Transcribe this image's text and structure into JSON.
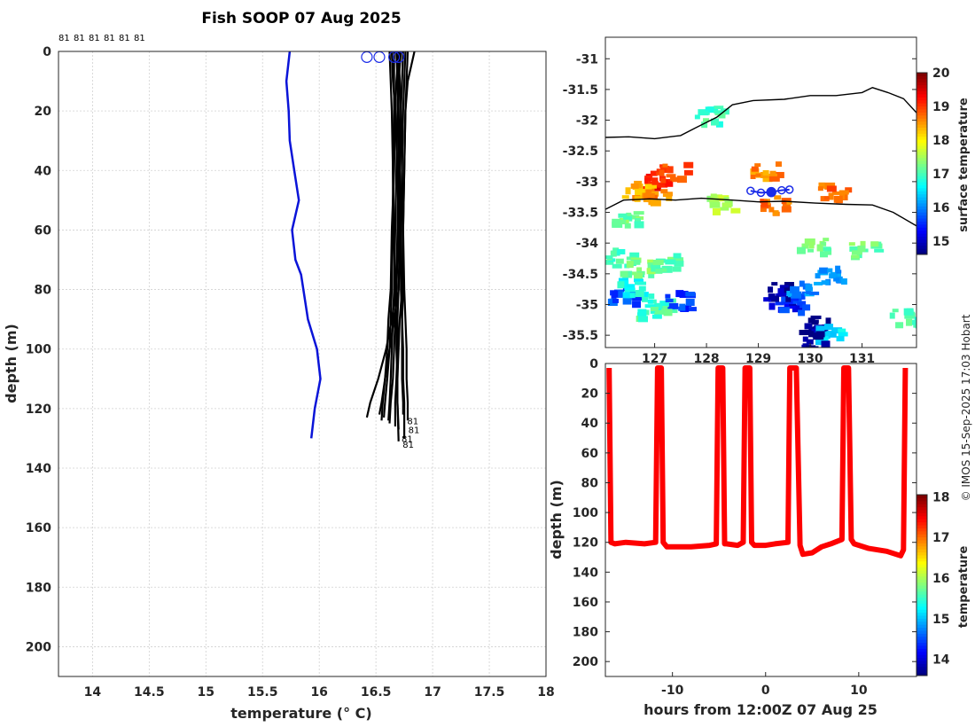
{
  "title": "Fish SOOP 07 Aug 2025",
  "credit": "© IMOS 15-Sep-2025 17:03 Hobart",
  "chart_data": [
    {
      "type": "line",
      "name": "temperature-depth-profiles",
      "xlabel": "temperature (° C)",
      "ylabel": "depth (m)",
      "xlim": [
        13.7,
        18.0
      ],
      "ylim": [
        0,
        210
      ],
      "xticks": [
        14,
        14.5,
        15,
        15.5,
        16,
        16.5,
        17,
        17.5,
        18
      ],
      "yticks": [
        0,
        20,
        40,
        60,
        80,
        100,
        120,
        140,
        160,
        180,
        200
      ],
      "top_labels": [
        "81",
        "81",
        "81",
        "81",
        "81",
        "81"
      ],
      "end_labels": [
        "81",
        "81",
        "81",
        "81"
      ],
      "series": [
        {
          "name": "climatology",
          "color": "#0a14d8",
          "temperature": [
            15.74,
            15.71,
            15.73,
            15.74,
            15.78,
            15.82,
            15.76,
            15.79,
            15.84,
            15.9,
            15.98,
            16.01,
            15.96,
            15.93
          ],
          "depth": [
            0,
            10,
            20,
            30,
            40,
            50,
            60,
            70,
            75,
            90,
            100,
            110,
            120,
            130
          ]
        },
        {
          "name": "profile-01",
          "color": "#000000",
          "temperature": [
            16.7,
            16.68,
            16.67,
            16.66,
            16.64,
            16.63,
            16.61,
            16.6,
            16.58,
            16.56,
            16.55
          ],
          "depth": [
            0,
            10,
            20,
            40,
            60,
            80,
            90,
            100,
            110,
            118,
            124
          ]
        },
        {
          "name": "profile-02",
          "color": "#000000",
          "temperature": [
            16.72,
            16.7,
            16.69,
            16.68,
            16.67,
            16.66,
            16.65,
            16.64,
            16.63,
            16.62,
            16.61
          ],
          "depth": [
            0,
            10,
            20,
            40,
            60,
            80,
            90,
            100,
            110,
            118,
            124
          ]
        },
        {
          "name": "profile-03",
          "color": "#000000",
          "temperature": [
            16.74,
            16.73,
            16.72,
            16.71,
            16.71,
            16.7,
            16.69,
            16.69,
            16.68,
            16.67,
            16.67
          ],
          "depth": [
            0,
            10,
            20,
            40,
            60,
            80,
            90,
            100,
            110,
            118,
            126
          ]
        },
        {
          "name": "profile-04",
          "color": "#000000",
          "temperature": [
            16.68,
            16.69,
            16.7,
            16.71,
            16.72,
            16.72,
            16.73,
            16.74,
            16.74,
            16.75,
            16.75
          ],
          "depth": [
            0,
            10,
            20,
            40,
            60,
            80,
            90,
            100,
            110,
            118,
            130
          ]
        },
        {
          "name": "profile-05",
          "color": "#000000",
          "temperature": [
            16.76,
            16.75,
            16.74,
            16.73,
            16.72,
            16.7,
            16.66,
            16.62,
            16.58,
            16.55,
            16.53
          ],
          "depth": [
            0,
            10,
            20,
            40,
            60,
            80,
            90,
            100,
            110,
            118,
            122
          ]
        },
        {
          "name": "profile-06",
          "color": "#000000",
          "temperature": [
            16.7,
            16.71,
            16.72,
            16.73,
            16.74,
            16.75,
            16.76,
            16.77,
            16.77,
            16.78,
            16.78
          ],
          "depth": [
            0,
            10,
            20,
            40,
            60,
            80,
            90,
            100,
            110,
            118,
            124
          ]
        },
        {
          "name": "profile-07",
          "color": "#000000",
          "temperature": [
            16.66,
            16.66,
            16.66,
            16.65,
            16.65,
            16.64,
            16.63,
            16.62,
            16.6,
            16.58,
            16.57
          ],
          "depth": [
            0,
            10,
            20,
            40,
            60,
            80,
            90,
            100,
            110,
            118,
            123
          ]
        },
        {
          "name": "profile-08",
          "color": "#000000",
          "temperature": [
            16.84,
            16.78,
            16.76,
            16.75,
            16.74,
            16.73,
            16.71,
            16.7,
            16.69,
            16.69,
            16.7
          ],
          "depth": [
            0,
            10,
            20,
            40,
            60,
            80,
            90,
            100,
            110,
            118,
            131
          ]
        },
        {
          "name": "profile-09",
          "color": "#000000",
          "temperature": [
            16.64,
            16.65,
            16.67,
            16.69,
            16.7,
            16.68,
            16.64,
            16.59,
            16.52,
            16.45,
            16.42
          ],
          "depth": [
            0,
            10,
            20,
            40,
            60,
            80,
            90,
            100,
            110,
            118,
            123
          ]
        },
        {
          "name": "profile-10",
          "color": "#000000",
          "temperature": [
            16.7,
            16.7,
            16.7,
            16.7,
            16.69,
            16.68,
            16.67,
            16.66,
            16.65,
            16.63,
            16.62
          ],
          "depth": [
            0,
            10,
            20,
            40,
            60,
            80,
            90,
            100,
            110,
            118,
            125
          ]
        },
        {
          "name": "profile-11",
          "color": "#000000",
          "temperature": [
            16.62,
            16.63,
            16.64,
            16.65,
            16.66,
            16.67,
            16.68,
            16.68,
            16.69,
            16.69,
            16.7
          ],
          "depth": [
            0,
            10,
            20,
            40,
            60,
            80,
            90,
            100,
            110,
            118,
            127
          ]
        },
        {
          "name": "profile-12",
          "color": "#000000",
          "temperature": [
            16.78,
            16.77,
            16.76,
            16.75,
            16.74,
            16.74,
            16.73,
            16.73,
            16.73,
            16.74,
            16.74
          ],
          "depth": [
            0,
            10,
            20,
            40,
            60,
            80,
            90,
            100,
            110,
            118,
            122
          ]
        }
      ],
      "markers": {
        "name": "start-positions",
        "color": "#1a2be8",
        "temperature": [
          16.42,
          16.53,
          16.66,
          16.7
        ],
        "depth": [
          1,
          1,
          1,
          1
        ]
      }
    },
    {
      "type": "heatmap",
      "name": "surface-temperature-map",
      "ylim": [
        -35.7,
        -30.65
      ],
      "xlim": [
        126.05,
        132.05
      ],
      "yticks": [
        -31,
        -31.5,
        -32,
        -32.5,
        -33,
        -33.5,
        -34,
        -34.5,
        -35,
        -35.5
      ],
      "xticks": [
        127,
        128,
        129,
        130,
        131
      ],
      "colorbar_label": "surface temperature",
      "colorbar_range": [
        14.6,
        20
      ],
      "colorbar_ticks": [
        15,
        16,
        17,
        18,
        19,
        20
      ],
      "coastline": [
        [
          126.05,
          -32.28
        ],
        [
          126.5,
          -32.27
        ],
        [
          127.0,
          -32.3
        ],
        [
          127.5,
          -32.25
        ],
        [
          127.8,
          -32.12
        ],
        [
          128.2,
          -31.95
        ],
        [
          128.5,
          -31.75
        ],
        [
          128.9,
          -31.68
        ],
        [
          129.5,
          -31.66
        ],
        [
          130.0,
          -31.6
        ],
        [
          130.5,
          -31.6
        ],
        [
          131.0,
          -31.55
        ],
        [
          131.2,
          -31.47
        ],
        [
          131.5,
          -31.55
        ],
        [
          131.8,
          -31.65
        ],
        [
          132.05,
          -31.88
        ]
      ],
      "front": [
        [
          126.05,
          -33.45
        ],
        [
          126.4,
          -33.3
        ],
        [
          126.9,
          -33.28
        ],
        [
          127.4,
          -33.3
        ],
        [
          127.9,
          -33.27
        ],
        [
          128.5,
          -33.3
        ],
        [
          129.0,
          -33.33
        ],
        [
          129.5,
          -33.32
        ],
        [
          130.1,
          -33.35
        ],
        [
          130.7,
          -33.37
        ],
        [
          131.2,
          -33.38
        ],
        [
          131.6,
          -33.5
        ],
        [
          132.05,
          -33.72
        ]
      ],
      "track": {
        "lon": [
          128.85,
          129.05,
          129.25,
          129.45,
          129.6
        ],
        "lat": [
          -33.15,
          -33.18,
          -33.17,
          -33.14,
          -33.13
        ]
      },
      "patches": [
        {
          "lon": 126.95,
          "lat": -32.95,
          "value": 19.3
        },
        {
          "lon": 127.3,
          "lat": -32.8,
          "value": 18.9
        },
        {
          "lon": 126.6,
          "lat": -33.1,
          "value": 18.4
        },
        {
          "lon": 127.0,
          "lat": -33.25,
          "value": 18.6
        },
        {
          "lon": 126.4,
          "lat": -33.55,
          "value": 17.2
        },
        {
          "lon": 126.3,
          "lat": -34.2,
          "value": 17.0
        },
        {
          "lon": 126.6,
          "lat": -34.35,
          "value": 17.3
        },
        {
          "lon": 127.2,
          "lat": -34.3,
          "value": 17.1
        },
        {
          "lon": 126.3,
          "lat": -34.8,
          "value": 15.7
        },
        {
          "lon": 126.5,
          "lat": -34.7,
          "value": 16.7
        },
        {
          "lon": 127.0,
          "lat": -34.95,
          "value": 16.9
        },
        {
          "lon": 127.4,
          "lat": -34.9,
          "value": 15.6
        },
        {
          "lon": 126.9,
          "lat": -35.05,
          "value": 17.0
        },
        {
          "lon": 129.4,
          "lat": -34.9,
          "value": 15.1
        },
        {
          "lon": 129.6,
          "lat": -34.95,
          "value": 15.6
        },
        {
          "lon": 129.35,
          "lat": -34.75,
          "value": 14.8
        },
        {
          "lon": 129.8,
          "lat": -34.7,
          "value": 16.0
        },
        {
          "lon": 130.1,
          "lat": -35.3,
          "value": 14.7
        },
        {
          "lon": 130.3,
          "lat": -35.45,
          "value": 16.5
        },
        {
          "lon": 130.05,
          "lat": -35.55,
          "value": 14.8
        },
        {
          "lon": 130.35,
          "lat": -34.5,
          "value": 16.0
        },
        {
          "lon": 130.0,
          "lat": -34.0,
          "value": 17.2
        },
        {
          "lon": 128.0,
          "lat": -31.9,
          "value": 17.0
        },
        {
          "lon": 129.1,
          "lat": -32.8,
          "value": 18.6
        },
        {
          "lon": 129.3,
          "lat": -33.35,
          "value": 18.7
        },
        {
          "lon": 130.4,
          "lat": -33.15,
          "value": 18.8
        },
        {
          "lon": 128.2,
          "lat": -33.3,
          "value": 17.5
        },
        {
          "lon": 131.0,
          "lat": -34.1,
          "value": 17.2
        },
        {
          "lon": 131.8,
          "lat": -35.2,
          "value": 17.0
        }
      ]
    },
    {
      "type": "line",
      "name": "temperature-time-depth-section",
      "xlabel": "hours from 12:00Z 07 Aug 25",
      "ylabel": "depth (m)",
      "xlim": [
        -17.2,
        16.2
      ],
      "ylim": [
        0,
        210
      ],
      "xticks": [
        -10,
        0,
        10
      ],
      "yticks": [
        0,
        20,
        40,
        60,
        80,
        100,
        120,
        140,
        160,
        180,
        200
      ],
      "colorbar_label": "temperature",
      "colorbar_range": [
        13.6,
        18.05
      ],
      "colorbar_ticks": [
        14,
        15,
        16,
        17,
        18
      ],
      "series": {
        "hours": [
          -16.8,
          -16.6,
          -16.2,
          -15,
          -13,
          -11.8,
          -11.6,
          -11.2,
          -11.0,
          -10.6,
          -8,
          -6,
          -5.3,
          -5.1,
          -4.6,
          -4.4,
          -4.2,
          -3.0,
          -2.4,
          -2.2,
          -1.7,
          -1.5,
          -1.2,
          0,
          1,
          2.4,
          2.6,
          3.3,
          3.7,
          4.0,
          5,
          6,
          7,
          8.2,
          8.4,
          8.9,
          9.2,
          9.5,
          11,
          13,
          14.5,
          14.8,
          15.0
        ],
        "depth": [
          3,
          120,
          121,
          120,
          121,
          120,
          3,
          3,
          120,
          123,
          123,
          122,
          121,
          3,
          3,
          121,
          121,
          122,
          120,
          3,
          3,
          120,
          122,
          122,
          121,
          120,
          3,
          3,
          122,
          128,
          127,
          123,
          121,
          118,
          3,
          3,
          118,
          121,
          124,
          126,
          129,
          125,
          3
        ],
        "value": 17.5
      }
    }
  ]
}
